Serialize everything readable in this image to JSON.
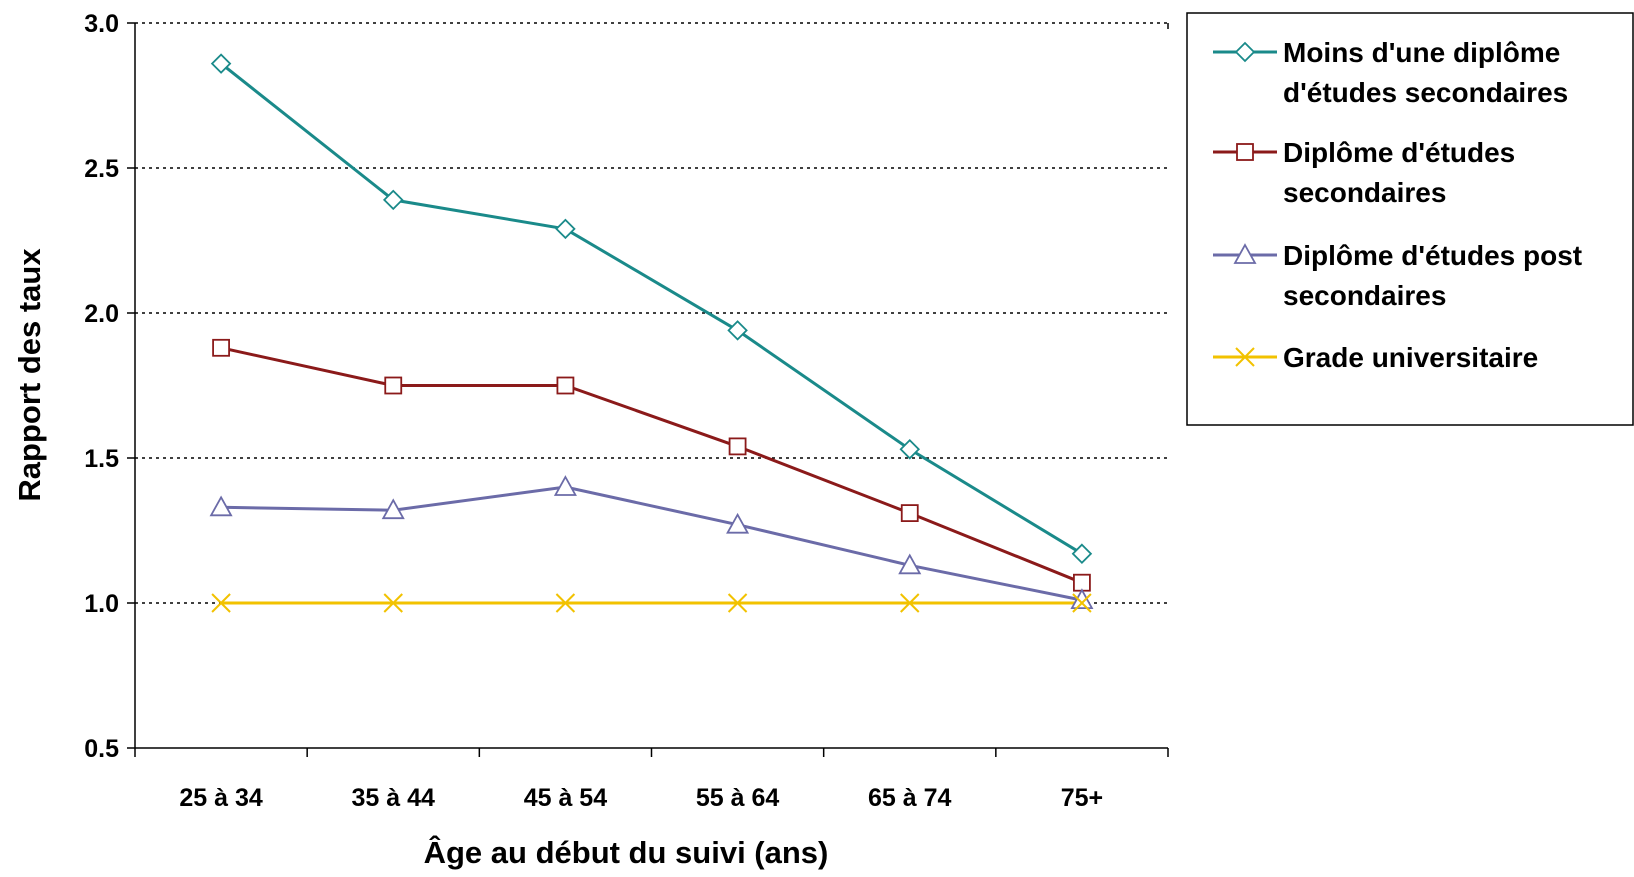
{
  "chart_data": {
    "type": "line",
    "title": "",
    "xlabel": "Âge au début du suivi (ans)",
    "ylabel": "Rapport des taux",
    "categories": [
      "25 à 34",
      "35 à 44",
      "45 à 54",
      "55 à 64",
      "65 à 74",
      "75+"
    ],
    "ylim": [
      0.5,
      3.0
    ],
    "yticks": [
      "0.5",
      "1.0",
      "1.5",
      "2.0",
      "2.5",
      "3.0"
    ],
    "ytick_values": [
      0.5,
      1.0,
      1.5,
      2.0,
      2.5,
      3.0
    ],
    "grid": "horizontal dotted",
    "legend_position": "right",
    "series": [
      {
        "name_lines": [
          "Moins d'une diplôme",
          "d'études secondaires"
        ],
        "values": [
          2.86,
          2.39,
          2.29,
          1.94,
          1.53,
          1.17
        ],
        "color": "#1a8a8a",
        "marker": "diamond"
      },
      {
        "name_lines": [
          "Diplôme d'études",
          "secondaires"
        ],
        "values": [
          1.88,
          1.75,
          1.75,
          1.54,
          1.31,
          1.07
        ],
        "color": "#8b1a1a",
        "marker": "square"
      },
      {
        "name_lines": [
          "Diplôme d'études post",
          "secondaires"
        ],
        "values": [
          1.33,
          1.32,
          1.4,
          1.27,
          1.13,
          1.01
        ],
        "color": "#6b6ba8",
        "marker": "triangle"
      },
      {
        "name_lines": [
          "Grade universitaire"
        ],
        "values": [
          1.0,
          1.0,
          1.0,
          1.0,
          1.0,
          1.0
        ],
        "color": "#f2c200",
        "marker": "x"
      }
    ]
  }
}
